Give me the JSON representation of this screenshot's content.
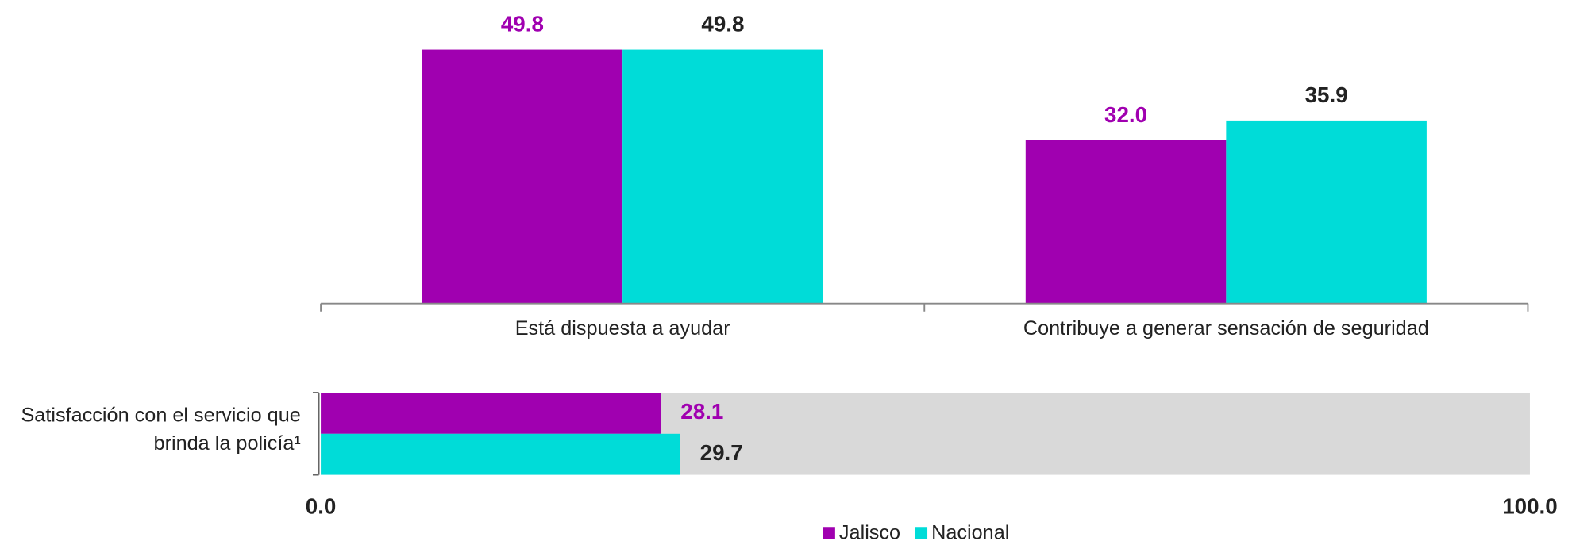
{
  "chart_data": [
    {
      "type": "bar",
      "categories": [
        "Está dispuesta a ayudar",
        "Contribuye a generar sensación de seguridad"
      ],
      "series": [
        {
          "color": "#a000b0",
          "label_color": "#a000b0",
          "values": [
            49.8,
            32.0
          ],
          "value_labels": [
            "49.8",
            "32.0"
          ]
        },
        {
          "color": "#00dcd8",
          "label_color": "#222222",
          "values": [
            49.8,
            35.9
          ],
          "value_labels": [
            "49.8",
            "35.9"
          ]
        }
      ],
      "ylim": [
        0,
        50
      ]
    },
    {
      "type": "hbar",
      "categories": [
        "Satisfacción con el servicio que brinda la policía¹"
      ],
      "series": [
        {
          "name": "Jalisco",
          "color": "#a000b0",
          "label_color": "#a000b0",
          "values": [
            28.1
          ],
          "value_labels": [
            "28.1"
          ]
        },
        {
          "name": "Nacional",
          "color": "#00dcd8",
          "label_color": "#222222",
          "values": [
            29.7
          ],
          "value_labels": [
            "29.7"
          ]
        }
      ],
      "xlim": [
        0,
        100
      ],
      "xticks": [
        {
          "value": 0,
          "label": "0.0"
        },
        {
          "value": 100,
          "label": "100.0"
        }
      ],
      "background": "#d9d9d9",
      "legend": "bottom"
    }
  ]
}
